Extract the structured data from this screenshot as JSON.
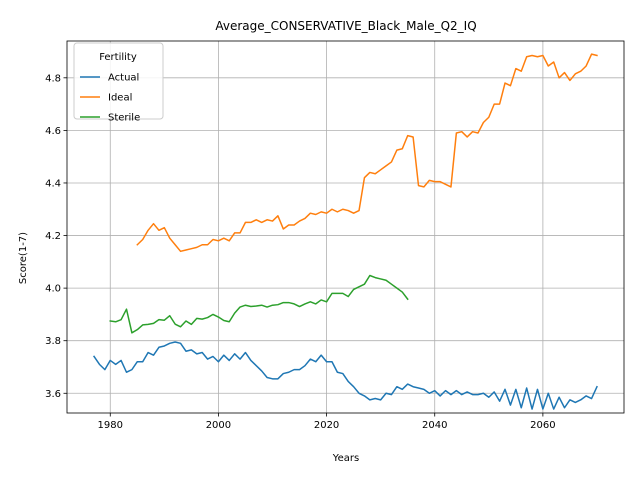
{
  "chart_data": {
    "type": "line",
    "title": "Average_CONSERVATIVE_Black_Male_Q2_IQ",
    "xlabel": "Years",
    "ylabel": "Score(1-7)",
    "xlim": [
      1972,
      2075
    ],
    "ylim": [
      3.525,
      4.94
    ],
    "xticks": [
      1980,
      2000,
      2020,
      2040,
      2060
    ],
    "xtick_labels": [
      "1980",
      "2000",
      "2020",
      "2040",
      "2060"
    ],
    "yticks": [
      3.6,
      3.8,
      4.0,
      4.2,
      4.4,
      4.6,
      4.8
    ],
    "ytick_labels": [
      "3.6",
      "3.8",
      "4.0",
      "4.2",
      "4.4",
      "4.6",
      "4.8"
    ],
    "grid": true,
    "legend": {
      "title": "Fertility",
      "position": "top-left"
    },
    "series": [
      {
        "name": "Actual",
        "color": "#1f77b4",
        "x": [
          1977,
          1978,
          1979,
          1980,
          1981,
          1982,
          1983,
          1984,
          1985,
          1986,
          1987,
          1988,
          1989,
          1990,
          1991,
          1992,
          1993,
          1994,
          1995,
          1996,
          1997,
          1998,
          1999,
          2000,
          2001,
          2002,
          2003,
          2004,
          2005,
          2006,
          2007,
          2008,
          2009,
          2010,
          2011,
          2012,
          2013,
          2014,
          2015,
          2016,
          2017,
          2018,
          2019,
          2020,
          2021,
          2022,
          2023,
          2024,
          2025,
          2026,
          2027,
          2028,
          2029,
          2030,
          2031,
          2032,
          2033,
          2034,
          2035,
          2036,
          2037,
          2038,
          2039,
          2040,
          2041,
          2042,
          2043,
          2044,
          2045,
          2046,
          2047,
          2048,
          2049,
          2050,
          2051,
          2052,
          2053,
          2054,
          2055,
          2056,
          2057,
          2058,
          2059,
          2060,
          2061,
          2062,
          2063,
          2064,
          2065,
          2066,
          2067,
          2068,
          2069,
          2070
        ],
        "y": [
          3.74,
          3.71,
          3.69,
          3.725,
          3.71,
          3.725,
          3.68,
          3.69,
          3.72,
          3.72,
          3.755,
          3.745,
          3.775,
          3.78,
          3.79,
          3.795,
          3.79,
          3.76,
          3.765,
          3.75,
          3.755,
          3.73,
          3.74,
          3.72,
          3.745,
          3.725,
          3.75,
          3.73,
          3.755,
          3.725,
          3.705,
          3.685,
          3.66,
          3.655,
          3.655,
          3.675,
          3.68,
          3.69,
          3.69,
          3.705,
          3.73,
          3.72,
          3.745,
          3.72,
          3.72,
          3.68,
          3.675,
          3.645,
          3.625,
          3.6,
          3.59,
          3.575,
          3.58,
          3.575,
          3.6,
          3.595,
          3.625,
          3.615,
          3.635,
          3.625,
          3.62,
          3.615,
          3.6,
          3.61,
          3.59,
          3.61,
          3.595,
          3.61,
          3.595,
          3.605,
          3.595,
          3.595,
          3.6,
          3.585,
          3.605,
          3.57,
          3.615,
          3.555,
          3.615,
          3.545,
          3.62,
          3.54,
          3.615,
          3.54,
          3.6,
          3.54,
          3.585,
          3.545,
          3.575,
          3.565,
          3.575,
          3.59,
          3.58,
          3.625
        ]
      },
      {
        "name": "Ideal",
        "color": "#ff7f0e",
        "x": [
          1985,
          1986,
          1987,
          1988,
          1989,
          1990,
          1991,
          1992,
          1993,
          1994,
          1995,
          1996,
          1997,
          1998,
          1999,
          2000,
          2001,
          2002,
          2003,
          2004,
          2005,
          2006,
          2007,
          2008,
          2009,
          2010,
          2011,
          2012,
          2013,
          2014,
          2015,
          2016,
          2017,
          2018,
          2019,
          2020,
          2021,
          2022,
          2023,
          2024,
          2025,
          2026,
          2027,
          2028,
          2029,
          2030,
          2031,
          2032,
          2033,
          2034,
          2035,
          2036,
          2037,
          2038,
          2039,
          2040,
          2041,
          2042,
          2043,
          2044,
          2045,
          2046,
          2047,
          2048,
          2049,
          2050,
          2051,
          2052,
          2053,
          2054,
          2055,
          2056,
          2057,
          2058,
          2059,
          2060,
          2061,
          2062,
          2063,
          2064,
          2065,
          2066,
          2067,
          2068,
          2069,
          2070
        ],
        "y": [
          4.165,
          4.185,
          4.22,
          4.245,
          4.22,
          4.23,
          4.19,
          4.165,
          4.14,
          4.145,
          4.15,
          4.155,
          4.165,
          4.165,
          4.185,
          4.18,
          4.19,
          4.18,
          4.21,
          4.21,
          4.25,
          4.25,
          4.26,
          4.25,
          4.26,
          4.255,
          4.275,
          4.225,
          4.24,
          4.24,
          4.255,
          4.265,
          4.285,
          4.28,
          4.29,
          4.285,
          4.3,
          4.29,
          4.3,
          4.295,
          4.285,
          4.295,
          4.42,
          4.44,
          4.435,
          4.45,
          4.465,
          4.48,
          4.525,
          4.53,
          4.58,
          4.575,
          4.39,
          4.385,
          4.41,
          4.405,
          4.405,
          4.395,
          4.385,
          4.59,
          4.595,
          4.575,
          4.595,
          4.59,
          4.63,
          4.65,
          4.7,
          4.7,
          4.78,
          4.77,
          4.835,
          4.825,
          4.88,
          4.885,
          4.88,
          4.885,
          4.845,
          4.86,
          4.8,
          4.82,
          4.79,
          4.815,
          4.825,
          4.845,
          4.89,
          4.885
        ]
      },
      {
        "name": "Sterile",
        "color": "#2ca02c",
        "x": [
          1980,
          1981,
          1982,
          1983,
          1984,
          1985,
          1986,
          1987,
          1988,
          1989,
          1990,
          1991,
          1992,
          1993,
          1994,
          1995,
          1996,
          1997,
          1998,
          1999,
          2000,
          2001,
          2002,
          2003,
          2004,
          2005,
          2006,
          2007,
          2008,
          2009,
          2010,
          2011,
          2012,
          2013,
          2014,
          2015,
          2016,
          2017,
          2018,
          2019,
          2020,
          2021,
          2022,
          2023,
          2024,
          2025,
          2026,
          2027,
          2028,
          2029,
          2030,
          2031,
          2032,
          2033,
          2034,
          2035
        ],
        "y": [
          3.875,
          3.872,
          3.88,
          3.92,
          3.83,
          3.842,
          3.86,
          3.862,
          3.866,
          3.88,
          3.878,
          3.895,
          3.863,
          3.853,
          3.875,
          3.862,
          3.885,
          3.882,
          3.888,
          3.9,
          3.89,
          3.877,
          3.872,
          3.905,
          3.928,
          3.935,
          3.93,
          3.932,
          3.935,
          3.928,
          3.935,
          3.937,
          3.945,
          3.945,
          3.94,
          3.93,
          3.94,
          3.948,
          3.94,
          3.955,
          3.948,
          3.98,
          3.98,
          3.98,
          3.968,
          3.995,
          4.005,
          4.015,
          4.048,
          4.04,
          4.035,
          4.03,
          4.015,
          4.0,
          3.985,
          3.958
        ]
      }
    ]
  }
}
